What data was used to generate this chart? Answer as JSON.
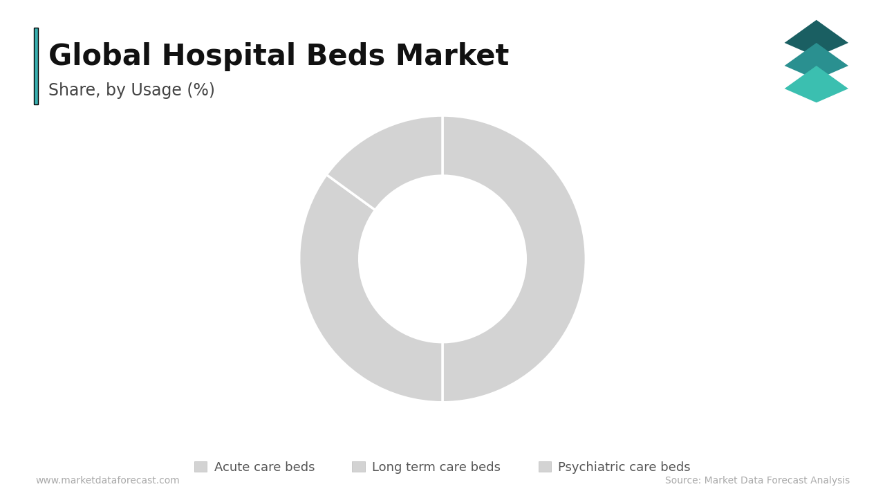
{
  "title": "Global Hospital Beds Market",
  "subtitle": "Share, by Usage (%)",
  "categories": [
    "Acute care beds",
    "Long term care beds",
    "Psychiatric care beds"
  ],
  "values": [
    50,
    35,
    15
  ],
  "donut_color": "#d3d3d3",
  "accent_color": "#3aafaf",
  "background_color": "#ffffff",
  "title_fontsize": 30,
  "subtitle_fontsize": 17,
  "legend_fontsize": 13,
  "footer_left": "www.marketdataforecast.com",
  "footer_right": "Source: Market Data Forecast Analysis",
  "footer_fontsize": 10,
  "wedge_linewidth": 2.5,
  "wedge_linecolor": "#ffffff",
  "startangle": 90,
  "donut_width": 0.42
}
